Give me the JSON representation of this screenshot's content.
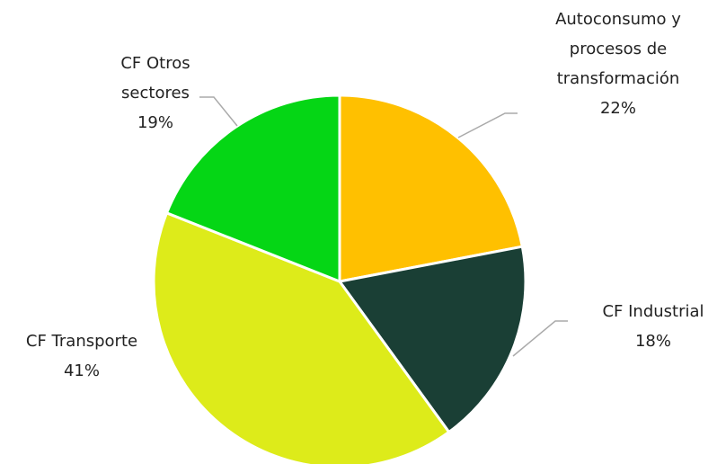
{
  "chart_data": {
    "type": "pie",
    "categories": [
      "Autoconsumo y procesos de transformación",
      "CF Industrial",
      "CF Transporte",
      "CF Otros sectores"
    ],
    "values": [
      22,
      18,
      41,
      19
    ],
    "value_labels": [
      "22%",
      "18%",
      "41%",
      "19%"
    ],
    "colors": [
      "#FFC000",
      "#1A3F35",
      "#DDEB1A",
      "#05D615"
    ]
  }
}
